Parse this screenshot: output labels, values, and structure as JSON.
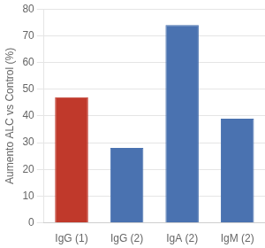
{
  "chart_data": {
    "type": "bar",
    "categories": [
      "IgG (1)",
      "IgG (2)",
      "IgA (2)",
      "IgM (2)"
    ],
    "values": [
      47,
      28,
      74,
      39
    ],
    "colors": [
      "#c0392b",
      "#4a72b0",
      "#4a72b0",
      "#4a72b0"
    ],
    "ylabel": "Aumento ALC vs Control (%)",
    "ylim": [
      0,
      80
    ],
    "yticks": [
      0,
      10,
      20,
      30,
      40,
      50,
      60,
      70,
      80
    ],
    "grid": true
  }
}
